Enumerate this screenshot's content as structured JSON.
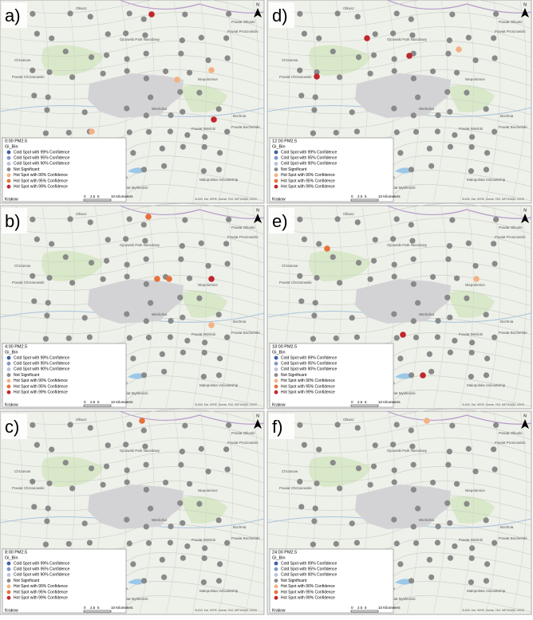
{
  "figure": {
    "panels": [
      {
        "label": "a)",
        "title": "0:00 PM2.5"
      },
      {
        "label": "d)",
        "title": "12:00 PM2.5"
      },
      {
        "label": "b)",
        "title": "4:00 PM2.5"
      },
      {
        "label": "e)",
        "title": "18:00 PM2.5"
      },
      {
        "label": "c)",
        "title": "8:00 PM2.5"
      },
      {
        "label": "f)",
        "title": "24:00 PM2.5"
      }
    ],
    "legend": {
      "title": "Gi_Bin",
      "items": [
        {
          "name": "Cold Spot with 99% Confidence",
          "color": "#3b62a6"
        },
        {
          "name": "Cold Spot with 95% Confidence",
          "color": "#7f98c6"
        },
        {
          "name": "Cold Spot with 90% Confidence",
          "color": "#b8c2d8"
        },
        {
          "name": "Not Significant",
          "color": "#8a8a8a"
        },
        {
          "name": "Hot Spot with 90% Confidence",
          "color": "#f4b183"
        },
        {
          "name": "Hot Spot with 95% Confidence",
          "color": "#e8703a"
        },
        {
          "name": "Hot Spot with 99% Confidence",
          "color": "#c0262c"
        }
      ]
    },
    "scale": {
      "ticks": [
        "0",
        "2.5",
        "5",
        "10 Kilometers"
      ]
    },
    "city": "Krakow",
    "north": "N",
    "attribution": "GUGiK, Esri, HERE, Garmin, FAO, METI/NASA, USGS",
    "places": [
      "Olkusz",
      "Powiat Olkuski",
      "Ojcowski Park Narodowy",
      "Chrzanow",
      "Powiat Chrzanowski",
      "Niepolomice",
      "Wieliczka",
      "Bochnia",
      "Powiat Bocheński",
      "Powiat Wielicki",
      "Myslenice",
      "Powiat Myślenicki",
      "Malopolska Voivodeship",
      "Powiat Proszowicki"
    ]
  }
}
